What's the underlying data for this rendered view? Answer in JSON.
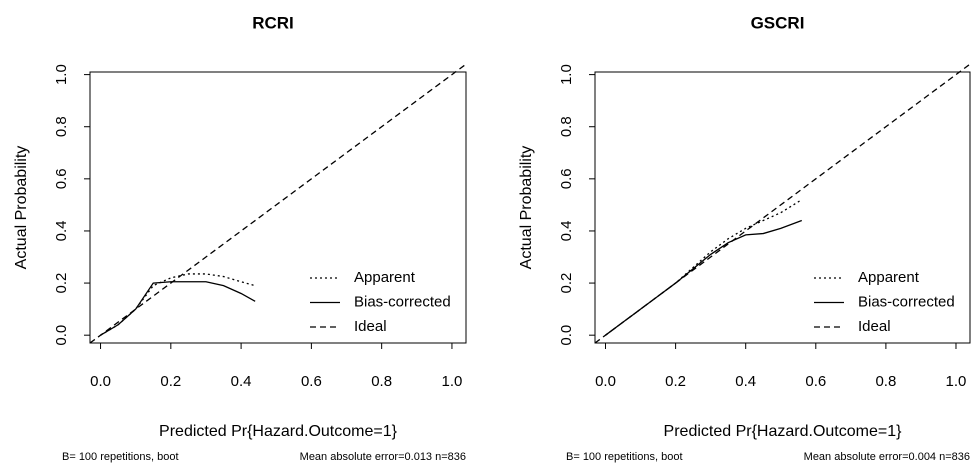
{
  "chart_data": [
    {
      "type": "line",
      "title": "RCRI",
      "xlabel": "Predicted Pr{Hazard.Outcome=1}",
      "ylabel": "Actual Probability",
      "subtitle_left": "B= 100 repetitions, boot",
      "subtitle_right": "Mean absolute error=0.013 n=836",
      "xlim": [
        -0.03,
        1.04
      ],
      "ylim": [
        -0.03,
        1.01
      ],
      "xticks": [
        {
          "value": 0,
          "label": "0.0"
        },
        {
          "value": 0.2,
          "label": "0.2"
        },
        {
          "value": 0.4,
          "label": "0.4"
        },
        {
          "value": 0.6,
          "label": "0.6"
        },
        {
          "value": 0.8,
          "label": "0.8"
        },
        {
          "value": 1,
          "label": "1.0"
        }
      ],
      "yticks": [
        {
          "value": 0,
          "label": "0.0"
        },
        {
          "value": 0.2,
          "label": "0.2"
        },
        {
          "value": 0.4,
          "label": "0.4"
        },
        {
          "value": 0.6,
          "label": "0.6"
        },
        {
          "value": 0.8,
          "label": "0.8"
        },
        {
          "value": 1,
          "label": "1.0"
        }
      ],
      "legend": "bottom-right",
      "series": [
        {
          "name": "Apparent",
          "color": "#000000",
          "dash": "dotted",
          "x": [
            0,
            0.05,
            0.1,
            0.15,
            0.2,
            0.25,
            0.3,
            0.35,
            0.4,
            0.44
          ],
          "values": [
            0,
            0.04,
            0.1,
            0.19,
            0.22,
            0.235,
            0.235,
            0.225,
            0.205,
            0.19
          ]
        },
        {
          "name": "Bias-corrected",
          "color": "#000000",
          "dash": "solid",
          "x": [
            0,
            0.05,
            0.1,
            0.15,
            0.2,
            0.25,
            0.3,
            0.35,
            0.4,
            0.44
          ],
          "values": [
            0,
            0.04,
            0.1,
            0.2,
            0.205,
            0.205,
            0.205,
            0.19,
            0.16,
            0.13
          ]
        },
        {
          "name": "Ideal",
          "color": "#000000",
          "dash": "dashed",
          "x": [
            -0.03,
            1.04
          ],
          "values": [
            -0.03,
            1.04
          ]
        }
      ]
    },
    {
      "type": "line",
      "title": "GSCRI",
      "xlabel": "Predicted Pr{Hazard.Outcome=1}",
      "ylabel": "Actual Probability",
      "subtitle_left": "B= 100 repetitions, boot",
      "subtitle_right": "Mean absolute error=0.004 n=836",
      "xlim": [
        -0.03,
        1.04
      ],
      "ylim": [
        -0.03,
        1.01
      ],
      "xticks": [
        {
          "value": 0,
          "label": "0.0"
        },
        {
          "value": 0.2,
          "label": "0.2"
        },
        {
          "value": 0.4,
          "label": "0.4"
        },
        {
          "value": 0.6,
          "label": "0.6"
        },
        {
          "value": 0.8,
          "label": "0.8"
        },
        {
          "value": 1,
          "label": "1.0"
        }
      ],
      "yticks": [
        {
          "value": 0,
          "label": "0.0"
        },
        {
          "value": 0.2,
          "label": "0.2"
        },
        {
          "value": 0.4,
          "label": "0.4"
        },
        {
          "value": 0.6,
          "label": "0.6"
        },
        {
          "value": 0.8,
          "label": "0.8"
        },
        {
          "value": 1,
          "label": "1.0"
        }
      ],
      "legend": "bottom-right",
      "series": [
        {
          "name": "Apparent",
          "color": "#000000",
          "dash": "dotted",
          "x": [
            0,
            0.05,
            0.1,
            0.15,
            0.2,
            0.25,
            0.3,
            0.35,
            0.4,
            0.45,
            0.5,
            0.56
          ],
          "values": [
            0,
            0.05,
            0.1,
            0.15,
            0.2,
            0.26,
            0.32,
            0.37,
            0.41,
            0.44,
            0.47,
            0.52
          ]
        },
        {
          "name": "Bias-corrected",
          "color": "#000000",
          "dash": "solid",
          "x": [
            0,
            0.05,
            0.1,
            0.15,
            0.2,
            0.25,
            0.3,
            0.35,
            0.4,
            0.45,
            0.5,
            0.56
          ],
          "values": [
            0,
            0.05,
            0.1,
            0.15,
            0.2,
            0.255,
            0.31,
            0.355,
            0.385,
            0.39,
            0.41,
            0.44
          ]
        },
        {
          "name": "Ideal",
          "color": "#000000",
          "dash": "dashed",
          "x": [
            -0.03,
            1.04
          ],
          "values": [
            -0.03,
            1.04
          ]
        }
      ]
    }
  ]
}
